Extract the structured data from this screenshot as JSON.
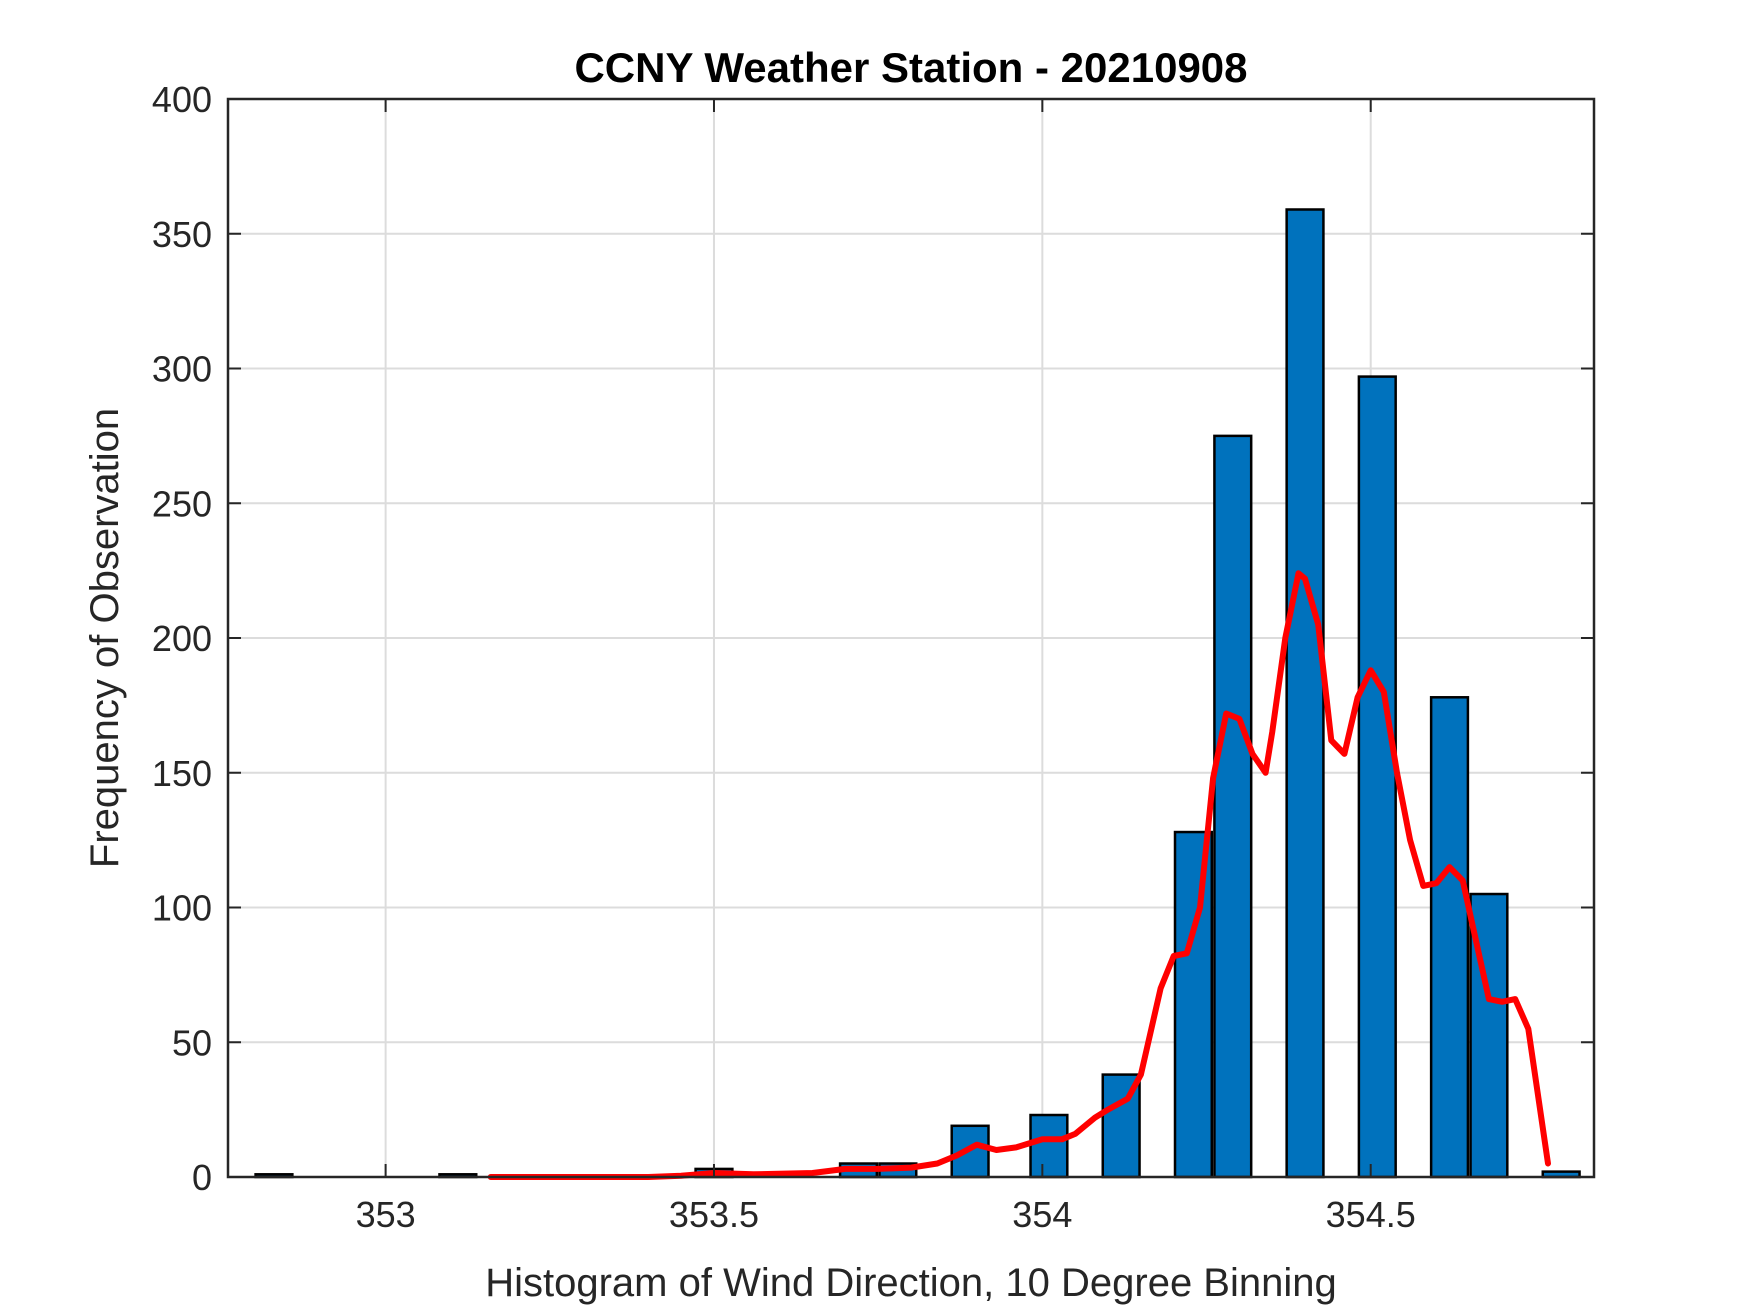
{
  "chart_data": {
    "type": "bar",
    "title": "CCNY Weather Station - 20210908",
    "xlabel": "Histogram of Wind Direction, 10 Degree Binning",
    "ylabel": "Frequency of Observation",
    "xlim": [
      352.76,
      354.84
    ],
    "ylim": [
      0,
      400
    ],
    "grid": true,
    "xticks": [
      353,
      353.5,
      354,
      354.5
    ],
    "xtick_labels": [
      "353",
      "353.5",
      "354",
      "354.5"
    ],
    "yticks": [
      0,
      50,
      100,
      150,
      200,
      250,
      300,
      350,
      400
    ],
    "ytick_labels": [
      "0",
      "50",
      "100",
      "150",
      "200",
      "250",
      "300",
      "350",
      "400"
    ],
    "bar_color": "#0072BD",
    "bin_width": 0.056,
    "bars": [
      {
        "x": 352.83,
        "value": 1
      },
      {
        "x": 353.11,
        "value": 1
      },
      {
        "x": 353.5,
        "value": 3
      },
      {
        "x": 353.72,
        "value": 5
      },
      {
        "x": 353.78,
        "value": 5
      },
      {
        "x": 353.89,
        "value": 19
      },
      {
        "x": 354.01,
        "value": 23
      },
      {
        "x": 354.12,
        "value": 38
      },
      {
        "x": 354.23,
        "value": 128
      },
      {
        "x": 354.29,
        "value": 275
      },
      {
        "x": 354.4,
        "value": 359
      },
      {
        "x": 354.51,
        "value": 297
      },
      {
        "x": 354.62,
        "value": 178
      },
      {
        "x": 354.68,
        "value": 105
      },
      {
        "x": 354.79,
        "value": 2
      }
    ],
    "series": [
      {
        "type": "line",
        "color": "#FF0000",
        "x": [
          353.16,
          353.3,
          353.4,
          353.45,
          353.5,
          353.56,
          353.65,
          353.7,
          353.75,
          353.8,
          353.84,
          353.87,
          353.9,
          353.93,
          353.96,
          354.0,
          354.03,
          354.05,
          354.08,
          354.1,
          354.13,
          354.15,
          354.18,
          354.2,
          354.22,
          354.24,
          354.26,
          354.28,
          354.3,
          354.32,
          354.34,
          354.35,
          354.37,
          354.39,
          354.4,
          354.42,
          354.44,
          354.46,
          354.48,
          354.5,
          354.52,
          354.54,
          354.56,
          354.58,
          354.6,
          354.62,
          354.64,
          354.66,
          354.68,
          354.7,
          354.72,
          354.74,
          354.77
        ],
        "y": [
          0,
          0,
          0,
          0.5,
          1.5,
          1,
          1.5,
          3,
          3,
          3.5,
          5,
          8,
          12,
          10,
          11,
          14,
          14,
          16,
          22,
          25,
          29,
          38,
          70,
          82,
          83,
          100,
          148,
          172,
          170,
          157,
          150,
          165,
          200,
          224,
          222,
          205,
          162,
          157,
          178,
          188,
          180,
          150,
          125,
          108,
          109,
          115,
          110,
          88,
          66,
          65,
          66,
          55,
          5
        ]
      }
    ]
  }
}
